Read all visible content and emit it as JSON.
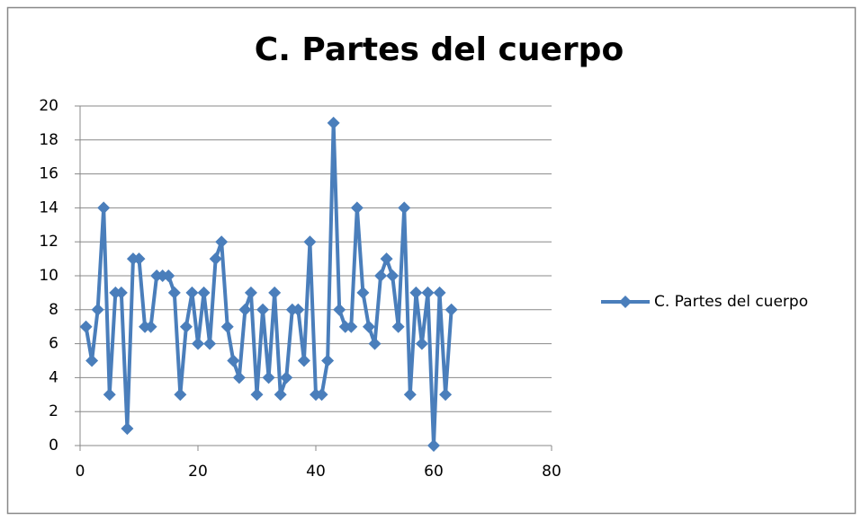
{
  "chart_data": {
    "type": "line",
    "title": "C. Partes del cuerpo",
    "x": [
      1,
      2,
      3,
      4,
      5,
      6,
      7,
      8,
      9,
      10,
      11,
      12,
      13,
      14,
      15,
      16,
      17,
      18,
      19,
      20,
      21,
      22,
      23,
      24,
      25,
      26,
      27,
      28,
      29,
      30,
      31,
      32,
      33,
      34,
      35,
      36,
      37,
      38,
      39,
      40,
      41,
      42,
      43,
      44,
      45,
      46,
      47,
      48,
      49,
      50,
      51,
      52,
      53,
      54,
      55,
      56,
      57,
      58,
      59,
      60,
      61,
      62,
      63
    ],
    "series": [
      {
        "name": "C. Partes del cuerpo",
        "color": "#4a7ebb",
        "values": [
          7,
          5,
          8,
          14,
          3,
          9,
          9,
          1,
          11,
          11,
          7,
          7,
          10,
          10,
          10,
          9,
          3,
          7,
          9,
          6,
          9,
          6,
          11,
          12,
          7,
          5,
          4,
          8,
          9,
          3,
          8,
          4,
          9,
          3,
          4,
          8,
          8,
          5,
          12,
          3,
          3,
          5,
          19,
          8,
          7,
          7,
          14,
          9,
          7,
          6,
          10,
          11,
          10,
          7,
          14,
          3,
          9,
          6,
          9,
          0,
          9,
          3,
          8
        ]
      }
    ],
    "xlim": [
      0,
      80
    ],
    "xticks": [
      0,
      20,
      40,
      60,
      80
    ],
    "ylim": [
      0,
      20
    ],
    "yticks": [
      0,
      2,
      4,
      6,
      8,
      10,
      12,
      14,
      16,
      18,
      20
    ],
    "grid": true,
    "legend": "right"
  }
}
